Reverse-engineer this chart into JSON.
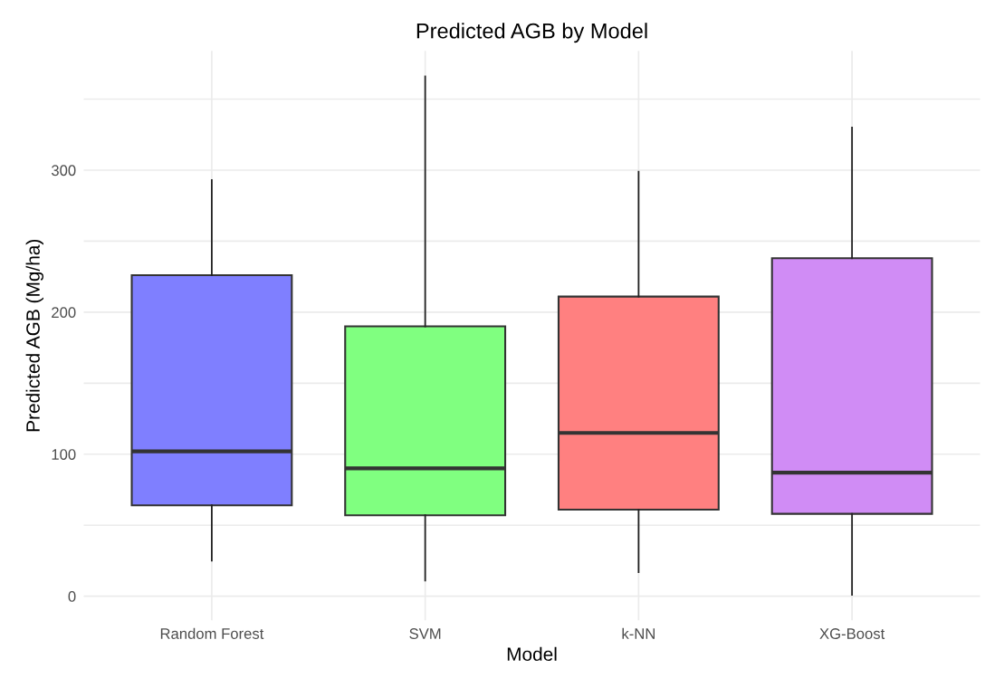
{
  "chart_data": {
    "type": "box",
    "title": "Predicted AGB by Model",
    "xlabel": "Model",
    "ylabel": "Predicted AGB (Mg/ha)",
    "categories": [
      "Random Forest",
      "SVM",
      "k-NN",
      "XG-Boost"
    ],
    "boxes": [
      {
        "low": 25,
        "q1": 64,
        "median": 102,
        "q3": 226,
        "high": 293
      },
      {
        "low": 11,
        "q1": 57,
        "median": 90,
        "q3": 190,
        "high": 366
      },
      {
        "low": 17,
        "q1": 61,
        "median": 115,
        "q3": 211,
        "high": 299
      },
      {
        "low": 1,
        "q1": 58,
        "median": 87,
        "q3": 238,
        "high": 330
      }
    ],
    "colors": [
      "#7f7fff",
      "#80ff80",
      "#ff8080",
      "#d08cf5"
    ],
    "ylim": [
      -17,
      384
    ],
    "yticks": [
      0,
      {
        "value": 50,
        "label": null
      },
      100,
      {
        "value": 150,
        "label": null
      },
      200,
      {
        "value": 250,
        "label": null
      },
      300,
      {
        "value": 350,
        "label": null
      }
    ],
    "grid": true
  }
}
